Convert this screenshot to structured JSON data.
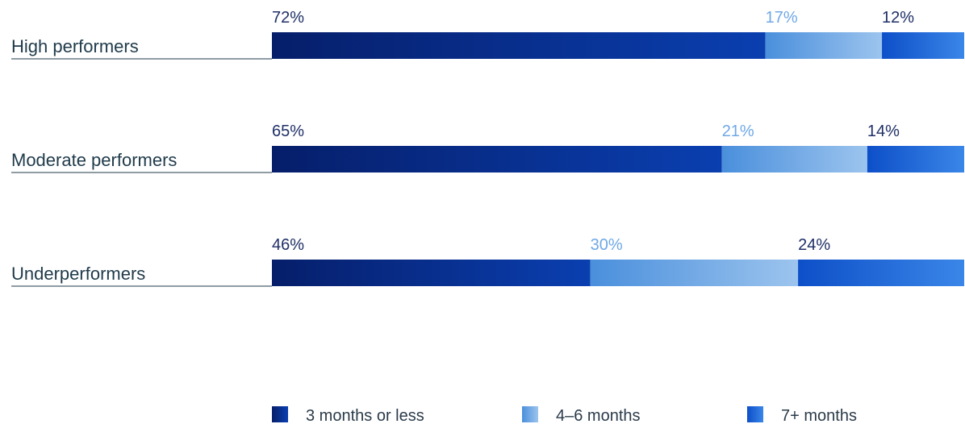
{
  "chart_data": {
    "type": "bar",
    "orientation": "horizontal",
    "stacked": true,
    "normalized": true,
    "categories": [
      "High performers",
      "Moderate performers",
      "Underperformers"
    ],
    "series": [
      {
        "name": "3 months or less",
        "values": [
          72,
          65,
          46
        ],
        "labels": [
          "72%",
          "65%",
          "46%"
        ],
        "color": "#0a2a7a"
      },
      {
        "name": "4–6 months",
        "values": [
          17,
          21,
          30
        ],
        "labels": [
          "17%",
          "21%",
          "30%"
        ],
        "color": "#5a9fe0"
      },
      {
        "name": "7+ months",
        "values": [
          12,
          14,
          24
        ],
        "labels": [
          "12%",
          "14%",
          "24%"
        ],
        "color": "#1e63d6"
      }
    ],
    "legend_position": "bottom",
    "grid": false
  },
  "colors": {
    "category_text": "#1f3a4a",
    "value_text_dark": "#1f2f66",
    "value_text_light": "#6fa8e6",
    "rule": "#1f3a4a"
  }
}
